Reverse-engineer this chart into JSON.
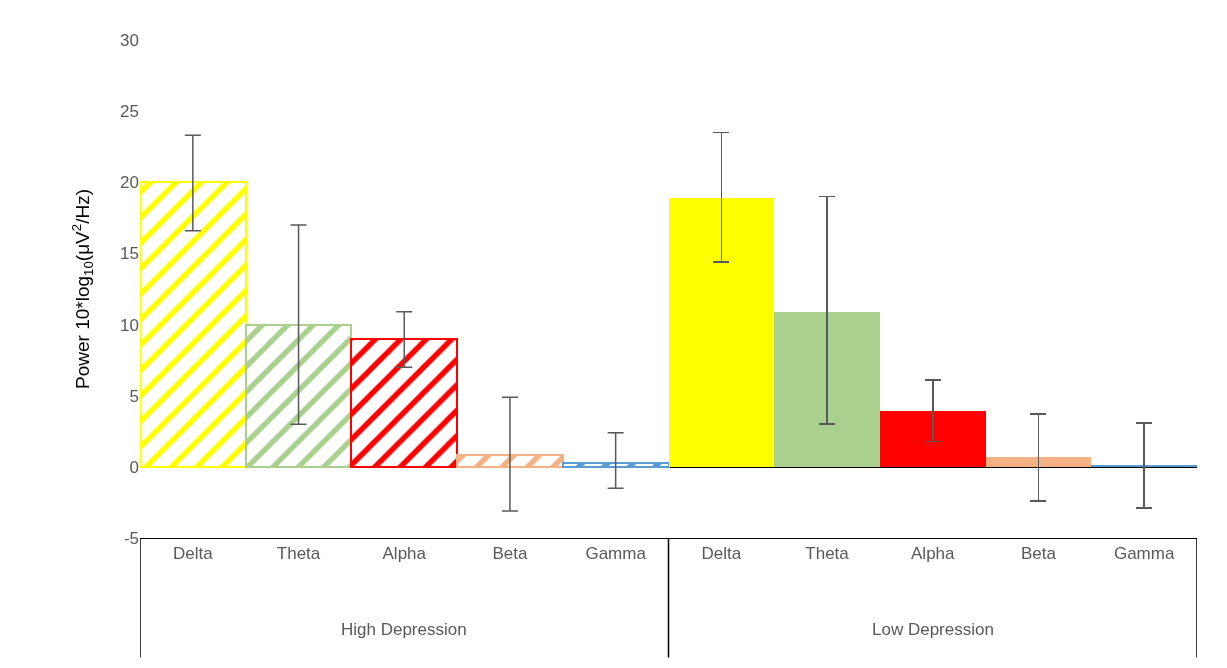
{
  "chart_data": {
    "type": "bar",
    "ylabel": "Power 10*log$_{10}$(μV$^{2}$/Hz)",
    "categories": [
      "Delta",
      "Theta",
      "Alpha",
      "Beta",
      "Gamma",
      "Delta",
      "Theta",
      "Alpha",
      "Beta",
      "Gamma"
    ],
    "series": [
      {
        "colors": [
          "#ffff00",
          "#a9d08e",
          "#ff0000",
          "#f4b183",
          "#5b9bd5",
          null,
          null,
          null,
          null,
          null
        ],
        "values": [
          20,
          10,
          9,
          0.8,
          0.3,
          null,
          null,
          null,
          null,
          null
        ],
        "errors": [
          [
            16.6,
            23.3
          ],
          [
            3,
            17
          ],
          [
            7,
            10.9
          ],
          [
            -3.1,
            4.9
          ],
          [
            -1.5,
            2.4
          ],
          null,
          null,
          null,
          null,
          null
        ]
      },
      {
        "colors": [
          null,
          null,
          null,
          null,
          null,
          "#ffff00",
          "#a9d08e",
          "#ff0000",
          "#f4b183",
          "#5b9bd5"
        ],
        "values": [
          null,
          null,
          null,
          null,
          null,
          18.9,
          10.9,
          3.9,
          0.7,
          0.1
        ],
        "errors": [
          null,
          null,
          null,
          null,
          null,
          [
            14.4,
            23.5
          ],
          [
            3,
            19
          ],
          [
            1.8,
            6.1
          ],
          [
            -2.4,
            3.7
          ],
          [
            -2.9,
            3.1
          ]
        ]
      }
    ],
    "annotations": [
      "High Depression",
      "Low Depression"
    ],
    "ylim": [
      -5,
      30
    ],
    "yticks": [
      -5,
      0,
      5,
      10,
      15,
      20,
      25,
      30
    ]
  }
}
